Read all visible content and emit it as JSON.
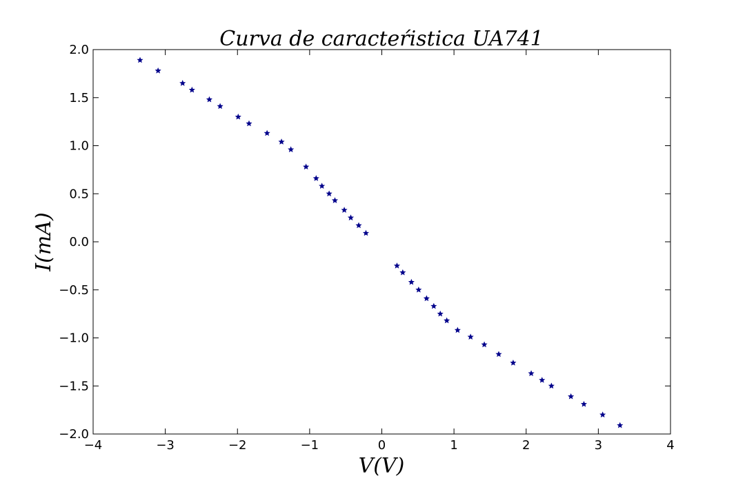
{
  "chart_data": {
    "type": "scatter",
    "title": "Curva de caracteŕistica UA741",
    "xlabel": "V(V)",
    "ylabel": "I(mA)",
    "xlim": [
      -4,
      4
    ],
    "ylim": [
      -2.0,
      2.0
    ],
    "xticks": [
      -4,
      -3,
      -2,
      -1,
      0,
      1,
      2,
      3,
      4
    ],
    "xtick_labels": [
      "−4",
      "−3",
      "−2",
      "−1",
      "0",
      "1",
      "2",
      "3",
      "4"
    ],
    "yticks": [
      -2.0,
      -1.5,
      -1.0,
      -0.5,
      0.0,
      0.5,
      1.0,
      1.5,
      2.0
    ],
    "ytick_labels": [
      "−2.0",
      "−1.5",
      "−1.0",
      "−0.5",
      "0.0",
      "0.5",
      "1.0",
      "1.5",
      "2.0"
    ],
    "grid": false,
    "marker": "*",
    "color": "#00008b",
    "points": [
      [
        -3.35,
        1.89
      ],
      [
        -3.1,
        1.78
      ],
      [
        -2.76,
        1.65
      ],
      [
        -2.63,
        1.58
      ],
      [
        -2.39,
        1.48
      ],
      [
        -2.24,
        1.41
      ],
      [
        -1.99,
        1.3
      ],
      [
        -1.84,
        1.23
      ],
      [
        -1.59,
        1.13
      ],
      [
        -1.39,
        1.04
      ],
      [
        -1.26,
        0.96
      ],
      [
        -1.05,
        0.78
      ],
      [
        -0.91,
        0.66
      ],
      [
        -0.83,
        0.58
      ],
      [
        -0.73,
        0.5
      ],
      [
        -0.65,
        0.43
      ],
      [
        -0.52,
        0.33
      ],
      [
        -0.43,
        0.25
      ],
      [
        -0.32,
        0.17
      ],
      [
        -0.22,
        0.09
      ],
      [
        0.21,
        -0.25
      ],
      [
        0.29,
        -0.32
      ],
      [
        0.41,
        -0.42
      ],
      [
        0.51,
        -0.5
      ],
      [
        0.62,
        -0.59
      ],
      [
        0.72,
        -0.67
      ],
      [
        0.81,
        -0.75
      ],
      [
        0.9,
        -0.82
      ],
      [
        1.05,
        -0.92
      ],
      [
        1.23,
        -0.99
      ],
      [
        1.42,
        -1.07
      ],
      [
        1.62,
        -1.17
      ],
      [
        1.82,
        -1.26
      ],
      [
        2.07,
        -1.37
      ],
      [
        2.22,
        -1.44
      ],
      [
        2.35,
        -1.5
      ],
      [
        2.62,
        -1.61
      ],
      [
        2.8,
        -1.69
      ],
      [
        3.06,
        -1.8
      ],
      [
        3.3,
        -1.91
      ]
    ]
  }
}
